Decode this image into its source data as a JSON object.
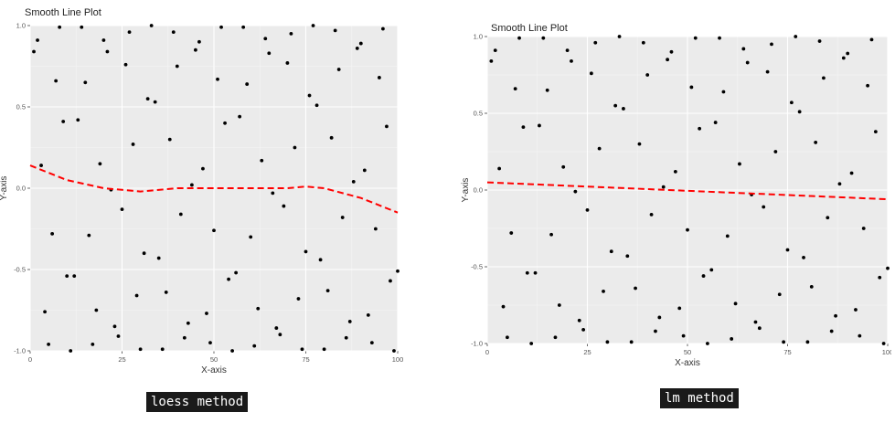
{
  "chart_data": [
    {
      "type": "scatter",
      "title": "Smooth Line Plot",
      "xlabel": "X-axis",
      "ylabel": "Y-axis",
      "xlim": [
        0,
        100
      ],
      "ylim": [
        -1,
        1
      ],
      "xticks": [
        "0",
        "25",
        "50",
        "75",
        "100"
      ],
      "yticks": [
        "-1.0",
        "-0.5",
        "0.0",
        "0.5",
        "1.0"
      ],
      "grid": true,
      "smooth": {
        "method": "loess",
        "color": "#ff0000",
        "x": [
          0,
          10,
          20,
          30,
          40,
          50,
          60,
          70,
          75,
          80,
          90,
          100
        ],
        "y": [
          0.14,
          0.05,
          0.0,
          -0.02,
          0.0,
          0.0,
          0.0,
          0.0,
          0.01,
          0.0,
          -0.06,
          -0.15
        ]
      },
      "points": {
        "x": [
          1,
          2,
          3,
          4,
          5,
          6,
          7,
          8,
          9,
          10,
          11,
          12,
          13,
          14,
          15,
          16,
          17,
          18,
          19,
          20,
          21,
          22,
          23,
          24,
          25,
          26,
          27,
          28,
          29,
          30,
          31,
          32,
          33,
          34,
          35,
          36,
          37,
          38,
          39,
          40,
          41,
          42,
          43,
          44,
          45,
          46,
          47,
          48,
          49,
          50,
          51,
          52,
          53,
          54,
          55,
          56,
          57,
          58,
          59,
          60,
          61,
          62,
          63,
          64,
          65,
          66,
          67,
          68,
          69,
          70,
          71,
          72,
          73,
          74,
          75,
          76,
          77,
          78,
          79,
          80,
          81,
          82,
          83,
          84,
          85,
          86,
          87,
          88,
          89,
          90,
          91,
          92,
          93,
          94,
          95,
          96,
          97,
          98,
          99,
          100
        ],
        "y": [
          0.84,
          0.91,
          0.14,
          -0.76,
          -0.96,
          -0.28,
          0.66,
          0.99,
          0.41,
          -0.54,
          -1.0,
          -0.54,
          0.42,
          0.99,
          0.65,
          -0.29,
          -0.96,
          -0.75,
          0.15,
          0.91,
          0.84,
          -0.01,
          -0.85,
          -0.91,
          -0.13,
          0.76,
          0.96,
          0.27,
          -0.66,
          -0.99,
          -0.4,
          0.55,
          1.0,
          0.53,
          -0.43,
          -0.99,
          -0.64,
          0.3,
          0.96,
          0.75,
          -0.16,
          -0.92,
          -0.83,
          0.02,
          0.85,
          0.9,
          0.12,
          -0.77,
          -0.95,
          -0.26,
          0.67,
          0.99,
          0.4,
          -0.56,
          -1.0,
          -0.52,
          0.44,
          0.99,
          0.64,
          -0.3,
          -0.97,
          -0.74,
          0.17,
          0.92,
          0.83,
          -0.03,
          -0.86,
          -0.9,
          -0.11,
          0.77,
          0.95,
          0.25,
          -0.68,
          -0.99,
          -0.39,
          0.57,
          1.0,
          0.51,
          -0.44,
          -0.99,
          -0.63,
          0.31,
          0.97,
          0.73,
          -0.18,
          -0.92,
          -0.82,
          0.04,
          0.86,
          0.89,
          0.11,
          -0.78,
          -0.95,
          -0.25,
          0.68,
          0.98,
          0.38,
          -0.57,
          -1.0,
          -0.51
        ]
      }
    },
    {
      "type": "scatter",
      "title": "Smooth Line Plot",
      "xlabel": "X-axis",
      "ylabel": "Y-axis",
      "xlim": [
        0,
        100
      ],
      "ylim": [
        -1,
        1
      ],
      "xticks": [
        "0",
        "25",
        "50",
        "75",
        "100"
      ],
      "yticks": [
        "-1.0",
        "-0.5",
        "0.0",
        "0.5",
        "1.0"
      ],
      "grid": true,
      "smooth": {
        "method": "lm",
        "color": "#ff0000",
        "x": [
          0,
          100
        ],
        "y": [
          0.05,
          -0.06
        ]
      },
      "points": {
        "x": [
          1,
          2,
          3,
          4,
          5,
          6,
          7,
          8,
          9,
          10,
          11,
          12,
          13,
          14,
          15,
          16,
          17,
          18,
          19,
          20,
          21,
          22,
          23,
          24,
          25,
          26,
          27,
          28,
          29,
          30,
          31,
          32,
          33,
          34,
          35,
          36,
          37,
          38,
          39,
          40,
          41,
          42,
          43,
          44,
          45,
          46,
          47,
          48,
          49,
          50,
          51,
          52,
          53,
          54,
          55,
          56,
          57,
          58,
          59,
          60,
          61,
          62,
          63,
          64,
          65,
          66,
          67,
          68,
          69,
          70,
          71,
          72,
          73,
          74,
          75,
          76,
          77,
          78,
          79,
          80,
          81,
          82,
          83,
          84,
          85,
          86,
          87,
          88,
          89,
          90,
          91,
          92,
          93,
          94,
          95,
          96,
          97,
          98,
          99,
          100
        ],
        "y": [
          0.84,
          0.91,
          0.14,
          -0.76,
          -0.96,
          -0.28,
          0.66,
          0.99,
          0.41,
          -0.54,
          -1.0,
          -0.54,
          0.42,
          0.99,
          0.65,
          -0.29,
          -0.96,
          -0.75,
          0.15,
          0.91,
          0.84,
          -0.01,
          -0.85,
          -0.91,
          -0.13,
          0.76,
          0.96,
          0.27,
          -0.66,
          -0.99,
          -0.4,
          0.55,
          1.0,
          0.53,
          -0.43,
          -0.99,
          -0.64,
          0.3,
          0.96,
          0.75,
          -0.16,
          -0.92,
          -0.83,
          0.02,
          0.85,
          0.9,
          0.12,
          -0.77,
          -0.95,
          -0.26,
          0.67,
          0.99,
          0.4,
          -0.56,
          -1.0,
          -0.52,
          0.44,
          0.99,
          0.64,
          -0.3,
          -0.97,
          -0.74,
          0.17,
          0.92,
          0.83,
          -0.03,
          -0.86,
          -0.9,
          -0.11,
          0.77,
          0.95,
          0.25,
          -0.68,
          -0.99,
          -0.39,
          0.57,
          1.0,
          0.51,
          -0.44,
          -0.99,
          -0.63,
          0.31,
          0.97,
          0.73,
          -0.18,
          -0.92,
          -0.82,
          0.04,
          0.86,
          0.89,
          0.11,
          -0.78,
          -0.95,
          -0.25,
          0.68,
          0.98,
          0.38,
          -0.57,
          -1.0,
          -0.51
        ]
      }
    }
  ],
  "captions": {
    "left": "loess method",
    "right": "lm method"
  }
}
